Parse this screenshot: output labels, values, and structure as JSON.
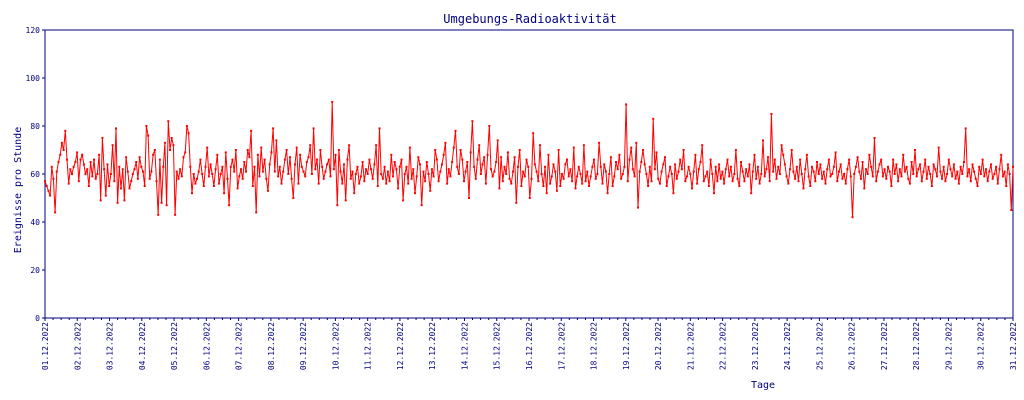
{
  "chart_data": {
    "type": "line",
    "title": "Umgebungs-Radioaktivität",
    "xlabel": "Tage",
    "ylabel": "Ereignisse pro Stunde",
    "ylim": [
      0,
      120
    ],
    "yticks": [
      "0",
      "20",
      "40",
      "60",
      "80",
      "100",
      "120"
    ],
    "xlim": [
      "01.12.2022",
      "31.12.2022"
    ],
    "xticks": [
      "01.12.2022",
      "02.12.2022",
      "03.12.2022",
      "04.12.2022",
      "05.12.2022",
      "06.12.2022",
      "07.12.2022",
      "08.12.2022",
      "09.12.2022",
      "10.12.2022",
      "11.12.2022",
      "12.12.2022",
      "13.12.2022",
      "14.12.2022",
      "15.12.2022",
      "16.12.2022",
      "17.12.2022",
      "18.12.2022",
      "19.12.2022",
      "20.12.2022",
      "21.12.2022",
      "22.12.2022",
      "23.12.2022",
      "24.12.2022",
      "25.12.2022",
      "26.12.2022",
      "27.12.2022",
      "28.12.2022",
      "29.12.2022",
      "30.12.2022",
      "31.12.2022"
    ],
    "grid": false,
    "legend": "none",
    "color": "#ff0000",
    "axis_color": "#000080",
    "series": [
      {
        "values": [
          57,
          55,
          53,
          51,
          63,
          58,
          44,
          61,
          65,
          68,
          73,
          70,
          78,
          66,
          56,
          62,
          60,
          63,
          65,
          69,
          57,
          66,
          68,
          64,
          60,
          62,
          55,
          65,
          59,
          66,
          58,
          60,
          68,
          49,
          75,
          62,
          51,
          64,
          55,
          60,
          72,
          57,
          79,
          48,
          63,
          54,
          62,
          49,
          67,
          61,
          54,
          57,
          60,
          62,
          65,
          58,
          67,
          63,
          61,
          55,
          80,
          76,
          58,
          61,
          68,
          70,
          57,
          43,
          66,
          48,
          63,
          73,
          47,
          82,
          70,
          75,
          72,
          43,
          61,
          58,
          62,
          59,
          67,
          69,
          80,
          77,
          63,
          52,
          60,
          56,
          58,
          61,
          66,
          60,
          55,
          63,
          71,
          59,
          64,
          60,
          55,
          62,
          68,
          56,
          60,
          63,
          52,
          69,
          58,
          47,
          63,
          66,
          61,
          70,
          54,
          59,
          62,
          58,
          65,
          61,
          70,
          67,
          78,
          55,
          63,
          44,
          68,
          59,
          71,
          61,
          66,
          58,
          53,
          64,
          69,
          79,
          61,
          74,
          59,
          63,
          56,
          61,
          66,
          70,
          60,
          67,
          58,
          50,
          64,
          71,
          56,
          68,
          63,
          61,
          59,
          65,
          67,
          72,
          60,
          79,
          62,
          66,
          56,
          70,
          63,
          58,
          61,
          64,
          66,
          59,
          90,
          62,
          68,
          47,
          70,
          61,
          56,
          64,
          49,
          66,
          72,
          58,
          61,
          52,
          60,
          63,
          56,
          59,
          65,
          57,
          62,
          60,
          66,
          62,
          58,
          64,
          72,
          55,
          79,
          60,
          58,
          63,
          56,
          61,
          57,
          68,
          59,
          65,
          62,
          54,
          63,
          66,
          49,
          60,
          63,
          56,
          71,
          58,
          62,
          52,
          59,
          67,
          64,
          47,
          61,
          57,
          65,
          60,
          53,
          62,
          59,
          70,
          66,
          57,
          61,
          64,
          68,
          73,
          56,
          62,
          59,
          65,
          71,
          78,
          63,
          60,
          70,
          66,
          57,
          61,
          65,
          50,
          69,
          82,
          63,
          58,
          66,
          72,
          60,
          64,
          67,
          56,
          68,
          80,
          62,
          59,
          61,
          65,
          74,
          54,
          67,
          57,
          63,
          60,
          69,
          58,
          56,
          61,
          67,
          48,
          63,
          70,
          55,
          61,
          59,
          66,
          63,
          50,
          58,
          77,
          64,
          61,
          57,
          72,
          60,
          55,
          63,
          52,
          68,
          56,
          59,
          64,
          61,
          53,
          70,
          55,
          60,
          58,
          64,
          66,
          59,
          62,
          57,
          71,
          54,
          59,
          63,
          60,
          56,
          72,
          57,
          61,
          55,
          59,
          63,
          66,
          58,
          60,
          73,
          63,
          56,
          64,
          61,
          52,
          60,
          67,
          55,
          59,
          65,
          62,
          68,
          58,
          60,
          63,
          89,
          57,
          66,
          71,
          62,
          59,
          73,
          46,
          61,
          65,
          70,
          64,
          60,
          55,
          63,
          57,
          83,
          62,
          69,
          58,
          56,
          61,
          64,
          67,
          55,
          59,
          63,
          60,
          52,
          64,
          58,
          61,
          66,
          62,
          70,
          57,
          59,
          63,
          60,
          54,
          61,
          68,
          56,
          62,
          65,
          72,
          57,
          59,
          61,
          55,
          66,
          60,
          52,
          63,
          57,
          64,
          58,
          61,
          56,
          62,
          66,
          59,
          63,
          57,
          60,
          70,
          58,
          55,
          65,
          61,
          57,
          62,
          59,
          64,
          52,
          61,
          68,
          58,
          63,
          56,
          60,
          74,
          59,
          62,
          67,
          57,
          85,
          61,
          66,
          58,
          63,
          60,
          72,
          68,
          64,
          59,
          56,
          62,
          70,
          61,
          58,
          63,
          57,
          66,
          60,
          54,
          62,
          68,
          59,
          55,
          63,
          61,
          57,
          65,
          60,
          64,
          58,
          61,
          56,
          62,
          66,
          59,
          60,
          63,
          69,
          57,
          61,
          64,
          58,
          60,
          56,
          62,
          66,
          59,
          42,
          60,
          63,
          67,
          61,
          58,
          65,
          54,
          62,
          60,
          68,
          63,
          59,
          75,
          57,
          61,
          64,
          66,
          59,
          62,
          58,
          63,
          61,
          55,
          66,
          60,
          64,
          57,
          62,
          59,
          68,
          61,
          63,
          58,
          56,
          65,
          60,
          70,
          59,
          62,
          64,
          57,
          61,
          66,
          58,
          63,
          60,
          55,
          64,
          62,
          59,
          71,
          61,
          58,
          63,
          57,
          60,
          66,
          62,
          59,
          64,
          58,
          61,
          56,
          63,
          60,
          65,
          79,
          59,
          62,
          57,
          64,
          61,
          58,
          55,
          63,
          60,
          66,
          59,
          62,
          57,
          61,
          64,
          58,
          60,
          63,
          56,
          62,
          68,
          59,
          61,
          55,
          64,
          60,
          45,
          63
        ]
      }
    ]
  }
}
